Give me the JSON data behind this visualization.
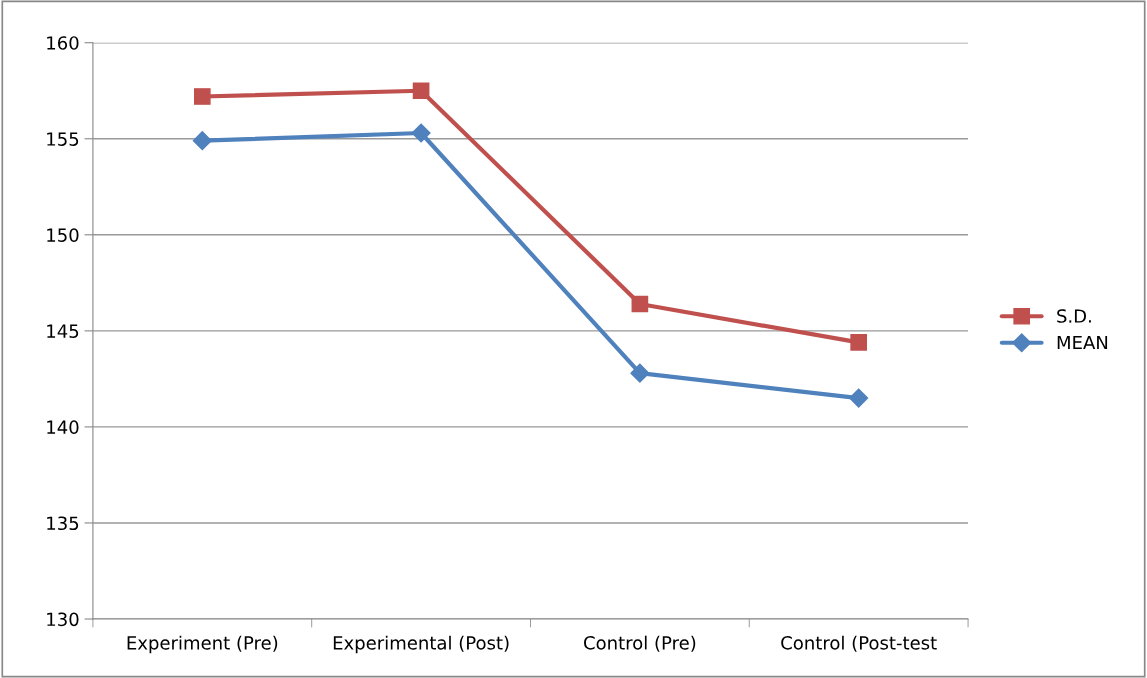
{
  "chart_data": {
    "type": "line",
    "categories": [
      "Experiment (Pre)",
      "Experimental (Post)",
      "Control (Pre)",
      "Control (Post-test"
    ],
    "series": [
      {
        "name": "S.D.",
        "color": "#c0504d",
        "marker": "square",
        "values": [
          157.2,
          157.5,
          146.4,
          144.4
        ]
      },
      {
        "name": "MEAN",
        "color": "#4f81bd",
        "marker": "diamond",
        "values": [
          154.9,
          155.3,
          142.8,
          141.5
        ]
      }
    ],
    "ylim": [
      130,
      160
    ],
    "yticks": [
      130,
      135,
      140,
      145,
      150,
      155,
      160
    ],
    "grid": "y",
    "legend": "right",
    "line_style": "solid"
  }
}
